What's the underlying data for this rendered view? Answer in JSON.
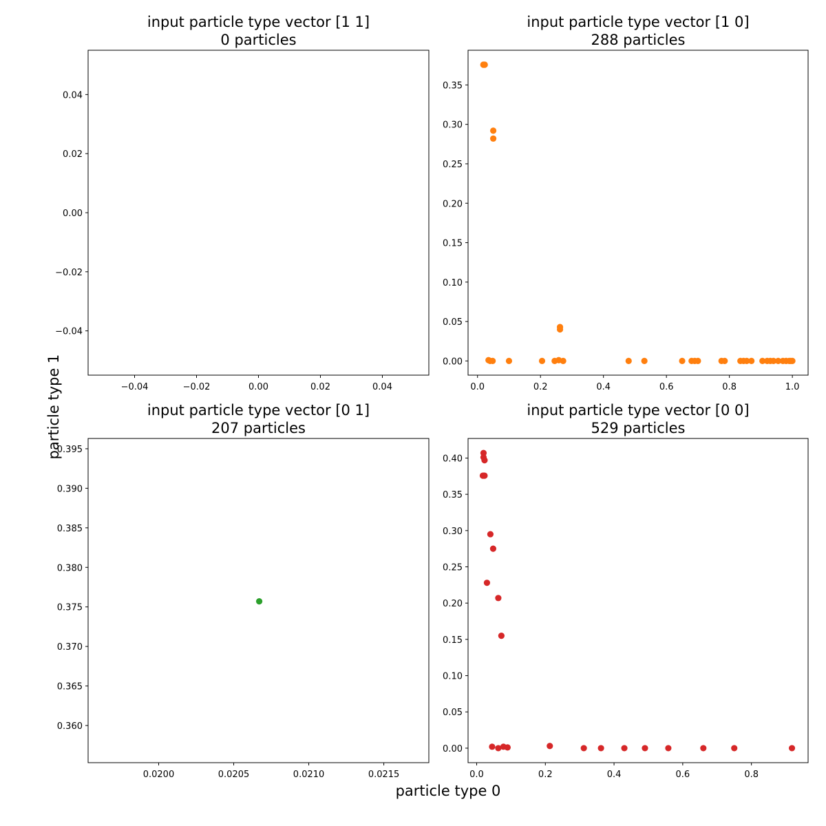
{
  "figure": {
    "xlabel": "particle type 0",
    "ylabel": "particle type 1"
  },
  "chart_data": [
    {
      "type": "scatter",
      "title_line1": "input particle type vector [1 1]",
      "title_line2": "0 particles",
      "color": "#1f77b4",
      "xlim": [
        -0.055,
        0.055
      ],
      "ylim": [
        -0.055,
        0.055
      ],
      "xticks": [
        -0.04,
        -0.02,
        0.0,
        0.02,
        0.04
      ],
      "xtick_labels": [
        "−0.04",
        "−0.02",
        "0.00",
        "0.02",
        "0.04"
      ],
      "yticks": [
        -0.04,
        -0.02,
        0.0,
        0.02,
        0.04
      ],
      "ytick_labels": [
        "−0.04",
        "−0.02",
        "0.00",
        "0.02",
        "0.04"
      ],
      "points": []
    },
    {
      "type": "scatter",
      "title_line1": "input particle type vector [1 0]",
      "title_line2": "288 particles",
      "color": "#ff7f0e",
      "xlim": [
        -0.03,
        1.05
      ],
      "ylim": [
        -0.018,
        0.394
      ],
      "xticks": [
        0.0,
        0.2,
        0.4,
        0.6,
        0.8,
        1.0
      ],
      "xtick_labels": [
        "0.0",
        "0.2",
        "0.4",
        "0.6",
        "0.8",
        "1.0"
      ],
      "yticks": [
        0.0,
        0.05,
        0.1,
        0.15,
        0.2,
        0.25,
        0.3,
        0.35
      ],
      "ytick_labels": [
        "0.00",
        "0.05",
        "0.10",
        "0.15",
        "0.20",
        "0.25",
        "0.30",
        "0.35"
      ],
      "points": [
        [
          0.0207,
          0.3757
        ],
        [
          0.0185,
          0.3757
        ],
        [
          0.023,
          0.3757
        ],
        [
          0.05,
          0.292
        ],
        [
          0.05,
          0.282
        ],
        [
          0.262,
          0.043
        ],
        [
          0.262,
          0.04
        ],
        [
          0.035,
          0.001
        ],
        [
          0.04,
          0.0
        ],
        [
          0.048,
          0.0
        ],
        [
          0.1,
          0.0
        ],
        [
          0.205,
          0.0
        ],
        [
          0.245,
          0.0
        ],
        [
          0.258,
          0.001
        ],
        [
          0.272,
          0.0
        ],
        [
          0.48,
          0.0
        ],
        [
          0.53,
          0.0
        ],
        [
          0.65,
          0.0
        ],
        [
          0.68,
          0.0
        ],
        [
          0.69,
          0.0
        ],
        [
          0.7,
          0.0
        ],
        [
          0.775,
          0.0
        ],
        [
          0.785,
          0.0
        ],
        [
          0.835,
          0.0
        ],
        [
          0.845,
          0.0
        ],
        [
          0.855,
          0.0
        ],
        [
          0.87,
          0.0
        ],
        [
          0.905,
          0.0
        ],
        [
          0.92,
          0.0
        ],
        [
          0.93,
          0.0
        ],
        [
          0.94,
          0.0
        ],
        [
          0.955,
          0.0
        ],
        [
          0.97,
          0.0
        ],
        [
          0.98,
          0.0
        ],
        [
          0.99,
          0.0
        ],
        [
          0.995,
          0.0
        ],
        [
          1.0,
          0.0
        ]
      ]
    },
    {
      "type": "scatter",
      "title_line1": "input particle type vector [0 1]",
      "title_line2": "207 particles",
      "color": "#2ca02c",
      "xlim": [
        0.01953,
        0.0218
      ],
      "ylim": [
        0.3553,
        0.3963
      ],
      "xticks": [
        0.02,
        0.0205,
        0.021,
        0.0215
      ],
      "xtick_labels": [
        "0.0200",
        "0.0205",
        "0.0210",
        "0.0215"
      ],
      "yticks": [
        0.36,
        0.365,
        0.37,
        0.375,
        0.38,
        0.385,
        0.39,
        0.395
      ],
      "ytick_labels": [
        "0.360",
        "0.365",
        "0.370",
        "0.375",
        "0.380",
        "0.385",
        "0.390",
        "0.395"
      ],
      "points": [
        [
          0.02067,
          0.3757
        ]
      ]
    },
    {
      "type": "scatter",
      "title_line1": "input particle type vector [0 0]",
      "title_line2": "529 particles",
      "color": "#d62728",
      "xlim": [
        -0.025,
        0.965
      ],
      "ylim": [
        -0.02,
        0.427
      ],
      "xticks": [
        0.0,
        0.2,
        0.4,
        0.6,
        0.8
      ],
      "xtick_labels": [
        "0.0",
        "0.2",
        "0.4",
        "0.6",
        "0.8"
      ],
      "yticks": [
        0.0,
        0.05,
        0.1,
        0.15,
        0.2,
        0.25,
        0.3,
        0.35,
        0.4
      ],
      "ytick_labels": [
        "0.00",
        "0.05",
        "0.10",
        "0.15",
        "0.20",
        "0.25",
        "0.30",
        "0.35",
        "0.40"
      ],
      "points": [
        [
          0.0207,
          0.3757
        ],
        [
          0.018,
          0.3757
        ],
        [
          0.023,
          0.3757
        ],
        [
          0.02,
          0.407
        ],
        [
          0.02,
          0.401
        ],
        [
          0.023,
          0.397
        ],
        [
          0.04,
          0.295
        ],
        [
          0.048,
          0.275
        ],
        [
          0.03,
          0.228
        ],
        [
          0.063,
          0.207
        ],
        [
          0.072,
          0.155
        ],
        [
          0.045,
          0.002
        ],
        [
          0.063,
          0.0
        ],
        [
          0.078,
          0.002
        ],
        [
          0.09,
          0.001
        ],
        [
          0.213,
          0.003
        ],
        [
          0.312,
          0.0
        ],
        [
          0.362,
          0.0
        ],
        [
          0.43,
          0.0
        ],
        [
          0.49,
          0.0
        ],
        [
          0.558,
          0.0
        ],
        [
          0.66,
          0.0
        ],
        [
          0.75,
          0.0
        ],
        [
          0.918,
          0.0
        ]
      ]
    }
  ]
}
